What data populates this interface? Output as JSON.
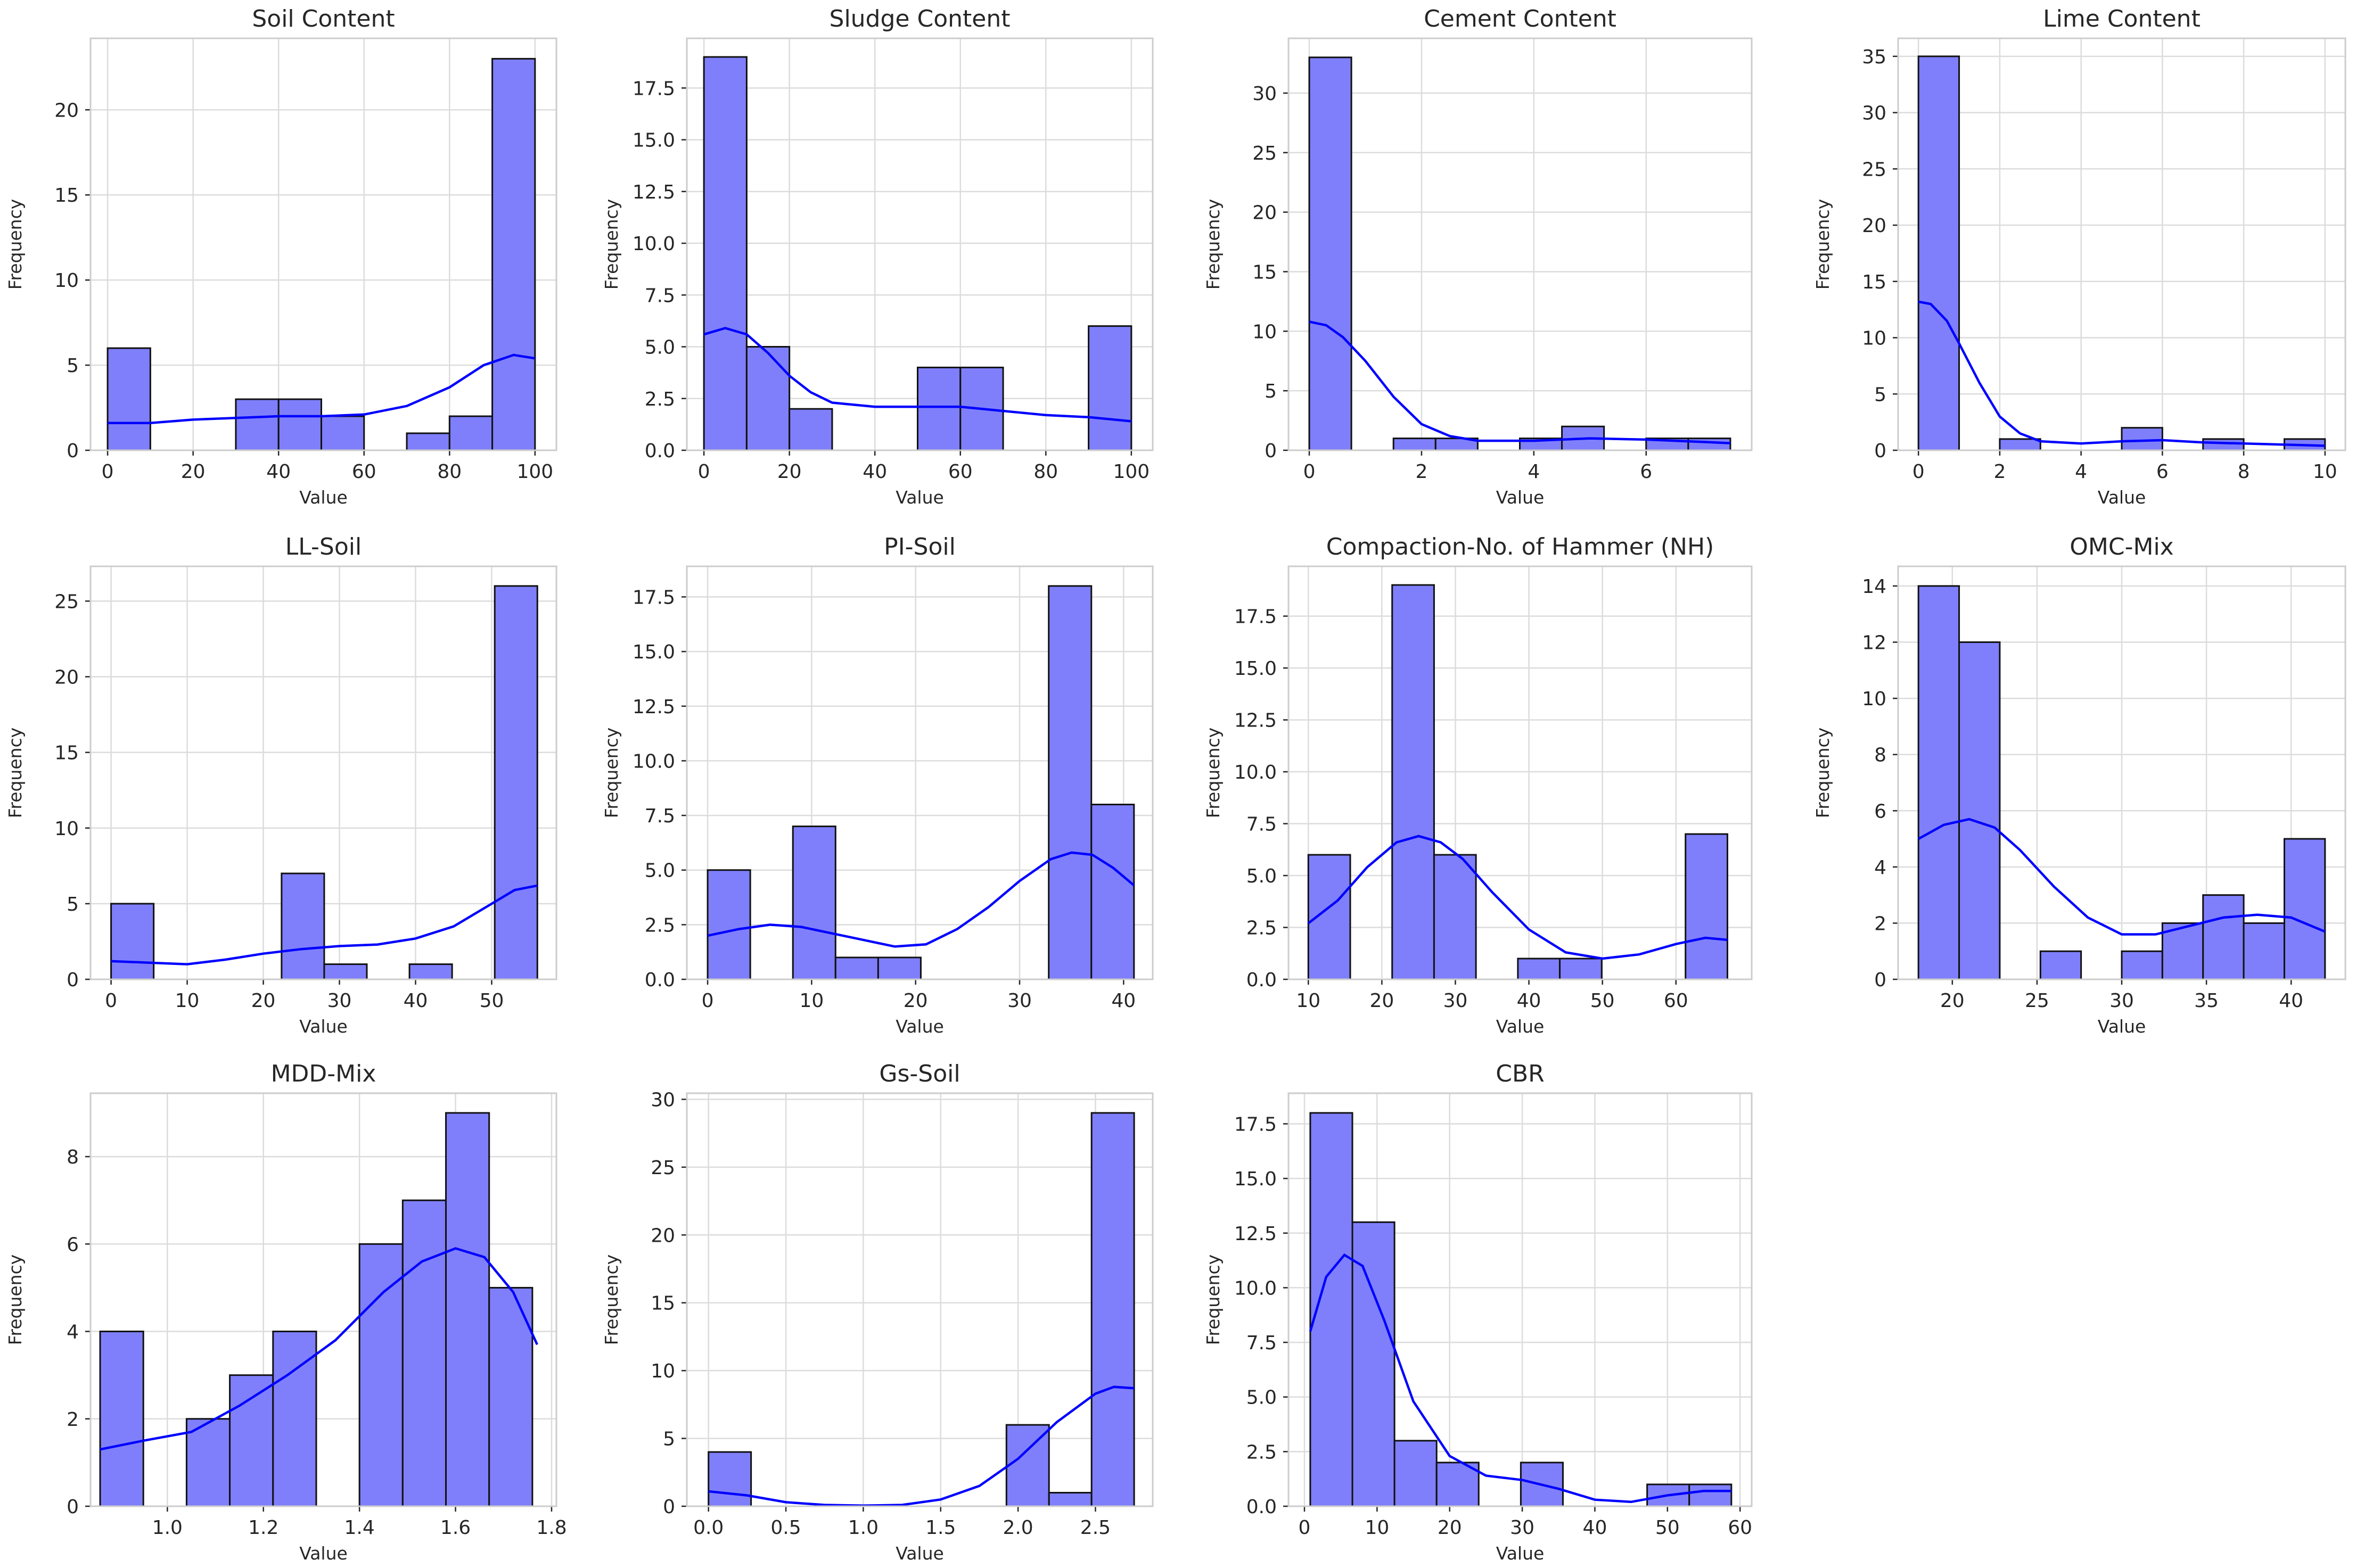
{
  "figure": {
    "bar_color": "#7f7ffb",
    "edge_color": "#111111",
    "kde_color": "#0000ff",
    "grid_color": "#dcdcdc"
  },
  "chart_data": [
    {
      "type": "bar",
      "title": "Soil Content",
      "xlabel": "Value",
      "ylabel": "Frequency",
      "xlim": [
        -4,
        105
      ],
      "ylim": [
        0,
        24.2
      ],
      "xticks": [
        0,
        20,
        40,
        60,
        80,
        100
      ],
      "xtick_labels": [
        "0",
        "20",
        "40",
        "60",
        "80",
        "100"
      ],
      "yticks": [
        0,
        5,
        10,
        15,
        20
      ],
      "ytick_labels": [
        "0",
        "5",
        "10",
        "15",
        "20"
      ],
      "bins": [
        [
          0,
          10,
          6
        ],
        [
          30,
          40,
          3
        ],
        [
          40,
          50,
          3
        ],
        [
          50,
          60,
          2
        ],
        [
          70,
          80,
          1
        ],
        [
          80,
          90,
          2
        ],
        [
          90,
          100,
          23
        ]
      ],
      "kde": [
        [
          0,
          1.6
        ],
        [
          10,
          1.6
        ],
        [
          20,
          1.8
        ],
        [
          30,
          1.9
        ],
        [
          40,
          2.0
        ],
        [
          50,
          2.0
        ],
        [
          60,
          2.1
        ],
        [
          70,
          2.6
        ],
        [
          80,
          3.7
        ],
        [
          88,
          5.0
        ],
        [
          95,
          5.6
        ],
        [
          100,
          5.4
        ]
      ]
    },
    {
      "type": "bar",
      "title": "Sludge Content",
      "xlabel": "Value",
      "ylabel": "Frequency",
      "xlim": [
        -4,
        105
      ],
      "ylim": [
        0,
        19.9
      ],
      "xticks": [
        0,
        20,
        40,
        60,
        80,
        100
      ],
      "xtick_labels": [
        "0",
        "20",
        "40",
        "60",
        "80",
        "100"
      ],
      "yticks": [
        0,
        2.5,
        5,
        7.5,
        10,
        12.5,
        15,
        17.5
      ],
      "ytick_labels": [
        "0.0",
        "2.5",
        "5.0",
        "7.5",
        "10.0",
        "12.5",
        "15.0",
        "17.5"
      ],
      "bins": [
        [
          0,
          10,
          19
        ],
        [
          10,
          20,
          5
        ],
        [
          20,
          30,
          2
        ],
        [
          50,
          60,
          4
        ],
        [
          60,
          70,
          4
        ],
        [
          90,
          100,
          6
        ]
      ],
      "kde": [
        [
          0,
          5.6
        ],
        [
          5,
          5.9
        ],
        [
          10,
          5.6
        ],
        [
          15,
          4.7
        ],
        [
          20,
          3.6
        ],
        [
          25,
          2.8
        ],
        [
          30,
          2.3
        ],
        [
          40,
          2.1
        ],
        [
          50,
          2.1
        ],
        [
          60,
          2.1
        ],
        [
          70,
          1.9
        ],
        [
          80,
          1.7
        ],
        [
          90,
          1.6
        ],
        [
          100,
          1.4
        ]
      ]
    },
    {
      "type": "bar",
      "title": "Cement Content",
      "xlabel": "Value",
      "ylabel": "Frequency",
      "xlim": [
        -0.37,
        7.88
      ],
      "ylim": [
        0,
        34.6
      ],
      "xticks": [
        0,
        2,
        4,
        6
      ],
      "xtick_labels": [
        "0",
        "2",
        "4",
        "6"
      ],
      "yticks": [
        0,
        5,
        10,
        15,
        20,
        25,
        30
      ],
      "ytick_labels": [
        "0",
        "5",
        "10",
        "15",
        "20",
        "25",
        "30"
      ],
      "bins": [
        [
          0,
          0.75,
          33
        ],
        [
          1.5,
          2.25,
          1
        ],
        [
          2.25,
          3,
          1
        ],
        [
          3.75,
          4.5,
          1
        ],
        [
          4.5,
          5.25,
          2
        ],
        [
          6,
          6.75,
          1
        ],
        [
          6.75,
          7.5,
          1
        ]
      ],
      "kde": [
        [
          0,
          10.8
        ],
        [
          0.3,
          10.5
        ],
        [
          0.6,
          9.5
        ],
        [
          1,
          7.5
        ],
        [
          1.5,
          4.5
        ],
        [
          2,
          2.2
        ],
        [
          2.5,
          1.2
        ],
        [
          3,
          0.8
        ],
        [
          4,
          0.8
        ],
        [
          5,
          1.0
        ],
        [
          6,
          0.9
        ],
        [
          7,
          0.7
        ],
        [
          7.5,
          0.6
        ]
      ]
    },
    {
      "type": "bar",
      "title": "Lime Content",
      "xlabel": "Value",
      "ylabel": "Frequency",
      "xlim": [
        -0.5,
        10.5
      ],
      "ylim": [
        0,
        36.6
      ],
      "xticks": [
        0,
        2,
        4,
        6,
        8,
        10
      ],
      "xtick_labels": [
        "0",
        "2",
        "4",
        "6",
        "8",
        "10"
      ],
      "yticks": [
        0,
        5,
        10,
        15,
        20,
        25,
        30,
        35
      ],
      "ytick_labels": [
        "0",
        "5",
        "10",
        "15",
        "20",
        "25",
        "30",
        "35"
      ],
      "bins": [
        [
          0,
          1,
          35
        ],
        [
          2,
          3,
          1
        ],
        [
          5,
          6,
          2
        ],
        [
          7,
          8,
          1
        ],
        [
          9,
          10,
          1
        ]
      ],
      "kde": [
        [
          0,
          13.2
        ],
        [
          0.3,
          13.0
        ],
        [
          0.7,
          11.5
        ],
        [
          1,
          9.5
        ],
        [
          1.5,
          6
        ],
        [
          2,
          3
        ],
        [
          2.5,
          1.5
        ],
        [
          3,
          0.8
        ],
        [
          4,
          0.6
        ],
        [
          5,
          0.8
        ],
        [
          6,
          0.9
        ],
        [
          7,
          0.7
        ],
        [
          8,
          0.6
        ],
        [
          9,
          0.5
        ],
        [
          10,
          0.4
        ]
      ]
    },
    {
      "type": "bar",
      "title": "LL-Soil",
      "xlabel": "Value",
      "ylabel": "Frequency",
      "xlim": [
        -2.7,
        58.5
      ],
      "ylim": [
        0,
        27.3
      ],
      "xticks": [
        0,
        10,
        20,
        30,
        40,
        50
      ],
      "xtick_labels": [
        "0",
        "10",
        "20",
        "30",
        "40",
        "50"
      ],
      "yticks": [
        0,
        5,
        10,
        15,
        20,
        25
      ],
      "ytick_labels": [
        "0",
        "5",
        "10",
        "15",
        "20",
        "25"
      ],
      "bins": [
        [
          0,
          5.6,
          5
        ],
        [
          22.4,
          28,
          7
        ],
        [
          28,
          33.6,
          1
        ],
        [
          39.2,
          44.8,
          1
        ],
        [
          50.4,
          56,
          26
        ]
      ],
      "kde": [
        [
          0,
          1.2
        ],
        [
          5,
          1.1
        ],
        [
          10,
          1.0
        ],
        [
          15,
          1.3
        ],
        [
          20,
          1.7
        ],
        [
          25,
          2.0
        ],
        [
          30,
          2.2
        ],
        [
          35,
          2.3
        ],
        [
          40,
          2.7
        ],
        [
          45,
          3.5
        ],
        [
          50,
          5.0
        ],
        [
          53,
          5.9
        ],
        [
          56,
          6.2
        ]
      ]
    },
    {
      "type": "bar",
      "title": "PI-Soil",
      "xlabel": "Value",
      "ylabel": "Frequency",
      "xlim": [
        -2.0,
        42.8
      ],
      "ylim": [
        0,
        18.9
      ],
      "xticks": [
        0,
        10,
        20,
        30,
        40
      ],
      "xtick_labels": [
        "0",
        "10",
        "20",
        "30",
        "40"
      ],
      "yticks": [
        0,
        2.5,
        5,
        7.5,
        10,
        12.5,
        15,
        17.5
      ],
      "ytick_labels": [
        "0.0",
        "2.5",
        "5.0",
        "7.5",
        "10.0",
        "12.5",
        "15.0",
        "17.5"
      ],
      "bins": [
        [
          0,
          4.1,
          5
        ],
        [
          8.2,
          12.3,
          7
        ],
        [
          12.3,
          16.4,
          1
        ],
        [
          16.4,
          20.5,
          1
        ],
        [
          32.8,
          36.9,
          18
        ],
        [
          36.9,
          41,
          8
        ]
      ],
      "kde": [
        [
          0,
          2.0
        ],
        [
          3,
          2.3
        ],
        [
          6,
          2.5
        ],
        [
          9,
          2.4
        ],
        [
          12,
          2.1
        ],
        [
          15,
          1.8
        ],
        [
          18,
          1.5
        ],
        [
          21,
          1.6
        ],
        [
          24,
          2.3
        ],
        [
          27,
          3.3
        ],
        [
          30,
          4.5
        ],
        [
          33,
          5.5
        ],
        [
          35,
          5.8
        ],
        [
          37,
          5.7
        ],
        [
          39,
          5.1
        ],
        [
          41,
          4.3
        ]
      ]
    },
    {
      "type": "bar",
      "title": "Compaction-No. of Hammer (NH)",
      "xlabel": "Value",
      "ylabel": "Frequency",
      "xlim": [
        7.3,
        70.3
      ],
      "ylim": [
        0,
        19.9
      ],
      "xticks": [
        10,
        20,
        30,
        40,
        50,
        60
      ],
      "xtick_labels": [
        "10",
        "20",
        "30",
        "40",
        "50",
        "60"
      ],
      "yticks": [
        0,
        2.5,
        5,
        7.5,
        10,
        12.5,
        15,
        17.5
      ],
      "ytick_labels": [
        "0.0",
        "2.5",
        "5.0",
        "7.5",
        "10.0",
        "12.5",
        "15.0",
        "17.5"
      ],
      "bins": [
        [
          10,
          15.7,
          6
        ],
        [
          21.4,
          27.1,
          19
        ],
        [
          27.1,
          32.8,
          6
        ],
        [
          38.5,
          44.2,
          1
        ],
        [
          44.2,
          49.9,
          1
        ],
        [
          61.3,
          67,
          7
        ]
      ],
      "kde": [
        [
          10,
          2.7
        ],
        [
          14,
          3.8
        ],
        [
          18,
          5.4
        ],
        [
          22,
          6.6
        ],
        [
          25,
          6.9
        ],
        [
          28,
          6.6
        ],
        [
          31,
          5.8
        ],
        [
          35,
          4.2
        ],
        [
          40,
          2.4
        ],
        [
          45,
          1.3
        ],
        [
          50,
          1.0
        ],
        [
          55,
          1.2
        ],
        [
          60,
          1.7
        ],
        [
          64,
          2.0
        ],
        [
          67,
          1.9
        ]
      ]
    },
    {
      "type": "bar",
      "title": "OMC-Mix",
      "xlabel": "Value",
      "ylabel": "Frequency",
      "xlim": [
        16.8,
        43.2
      ],
      "ylim": [
        0,
        14.7
      ],
      "xticks": [
        20,
        25,
        30,
        35,
        40
      ],
      "xtick_labels": [
        "20",
        "25",
        "30",
        "35",
        "40"
      ],
      "yticks": [
        0,
        2,
        4,
        6,
        8,
        10,
        12,
        14
      ],
      "ytick_labels": [
        "0",
        "2",
        "4",
        "6",
        "8",
        "10",
        "12",
        "14"
      ],
      "bins": [
        [
          18,
          20.4,
          14
        ],
        [
          20.4,
          22.8,
          12
        ],
        [
          25.2,
          27.6,
          1
        ],
        [
          30,
          32.4,
          1
        ],
        [
          32.4,
          34.8,
          2
        ],
        [
          34.8,
          37.2,
          3
        ],
        [
          37.2,
          39.6,
          2
        ],
        [
          39.6,
          42,
          5
        ]
      ],
      "kde": [
        [
          18,
          5.0
        ],
        [
          19.5,
          5.5
        ],
        [
          21,
          5.7
        ],
        [
          22.5,
          5.4
        ],
        [
          24,
          4.6
        ],
        [
          26,
          3.3
        ],
        [
          28,
          2.2
        ],
        [
          30,
          1.6
        ],
        [
          32,
          1.6
        ],
        [
          34,
          1.9
        ],
        [
          36,
          2.2
        ],
        [
          38,
          2.3
        ],
        [
          40,
          2.2
        ],
        [
          42,
          1.7
        ]
      ]
    },
    {
      "type": "bar",
      "title": "MDD-Mix",
      "xlabel": "Value",
      "ylabel": "Frequency",
      "xlim": [
        0.84,
        1.81
      ],
      "ylim": [
        0,
        9.45
      ],
      "xticks": [
        1.0,
        1.2,
        1.4,
        1.6,
        1.8
      ],
      "xtick_labels": [
        "1.0",
        "1.2",
        "1.4",
        "1.6",
        "1.8"
      ],
      "yticks": [
        0,
        2,
        4,
        6,
        8
      ],
      "ytick_labels": [
        "0",
        "2",
        "4",
        "6",
        "8"
      ],
      "bins": [
        [
          0.86,
          0.95,
          4
        ],
        [
          1.04,
          1.13,
          2
        ],
        [
          1.13,
          1.22,
          3
        ],
        [
          1.22,
          1.31,
          4
        ],
        [
          1.4,
          1.49,
          6
        ],
        [
          1.49,
          1.58,
          7
        ],
        [
          1.58,
          1.67,
          9
        ],
        [
          1.67,
          1.76,
          5
        ]
      ],
      "kde": [
        [
          0.86,
          1.3
        ],
        [
          0.95,
          1.5
        ],
        [
          1.05,
          1.7
        ],
        [
          1.15,
          2.3
        ],
        [
          1.25,
          3.0
        ],
        [
          1.35,
          3.8
        ],
        [
          1.45,
          4.9
        ],
        [
          1.53,
          5.6
        ],
        [
          1.6,
          5.9
        ],
        [
          1.66,
          5.7
        ],
        [
          1.72,
          4.9
        ],
        [
          1.77,
          3.7
        ]
      ]
    },
    {
      "type": "bar",
      "title": "Gs-Soil",
      "xlabel": "Value",
      "ylabel": "Frequency",
      "xlim": [
        -0.14,
        2.87
      ],
      "ylim": [
        0,
        30.45
      ],
      "xticks": [
        0,
        0.5,
        1.0,
        1.5,
        2.0,
        2.5
      ],
      "xtick_labels": [
        "0.0",
        "0.5",
        "1.0",
        "1.5",
        "2.0",
        "2.5"
      ],
      "yticks": [
        0,
        5,
        10,
        15,
        20,
        25,
        30
      ],
      "ytick_labels": [
        "0",
        "5",
        "10",
        "15",
        "20",
        "25",
        "30"
      ],
      "bins": [
        [
          0,
          0.275,
          4
        ],
        [
          1.925,
          2.2,
          6
        ],
        [
          2.2,
          2.475,
          1
        ],
        [
          2.475,
          2.75,
          29
        ]
      ],
      "kde": [
        [
          0,
          1.1
        ],
        [
          0.25,
          0.8
        ],
        [
          0.5,
          0.3
        ],
        [
          0.75,
          0.1
        ],
        [
          1,
          0.05
        ],
        [
          1.25,
          0.1
        ],
        [
          1.5,
          0.5
        ],
        [
          1.75,
          1.5
        ],
        [
          2,
          3.5
        ],
        [
          2.25,
          6.2
        ],
        [
          2.5,
          8.3
        ],
        [
          2.62,
          8.8
        ],
        [
          2.75,
          8.7
        ]
      ]
    },
    {
      "type": "bar",
      "title": "CBR",
      "xlabel": "Value",
      "ylabel": "Frequency",
      "xlim": [
        -2.2,
        61.6
      ],
      "ylim": [
        0,
        18.9
      ],
      "xticks": [
        0,
        10,
        20,
        30,
        40,
        50,
        60
      ],
      "xtick_labels": [
        "0",
        "10",
        "20",
        "30",
        "40",
        "50",
        "60"
      ],
      "yticks": [
        0,
        2.5,
        5,
        7.5,
        10,
        12.5,
        15,
        17.5
      ],
      "ytick_labels": [
        "0.0",
        "2.5",
        "5.0",
        "7.5",
        "10.0",
        "12.5",
        "15.0",
        "17.5"
      ],
      "bins": [
        [
          0.8,
          6.6,
          18
        ],
        [
          6.6,
          12.4,
          13
        ],
        [
          12.4,
          18.2,
          3
        ],
        [
          18.2,
          24,
          2
        ],
        [
          29.8,
          35.6,
          2
        ],
        [
          47.2,
          53,
          1
        ],
        [
          53,
          58.8,
          1
        ]
      ],
      "kde": [
        [
          0.8,
          8.0
        ],
        [
          3,
          10.5
        ],
        [
          5.5,
          11.5
        ],
        [
          8,
          11.0
        ],
        [
          11,
          8.5
        ],
        [
          15,
          4.8
        ],
        [
          20,
          2.3
        ],
        [
          25,
          1.4
        ],
        [
          30,
          1.2
        ],
        [
          35,
          0.8
        ],
        [
          40,
          0.3
        ],
        [
          45,
          0.2
        ],
        [
          50,
          0.5
        ],
        [
          55,
          0.7
        ],
        [
          58.8,
          0.7
        ]
      ]
    }
  ]
}
